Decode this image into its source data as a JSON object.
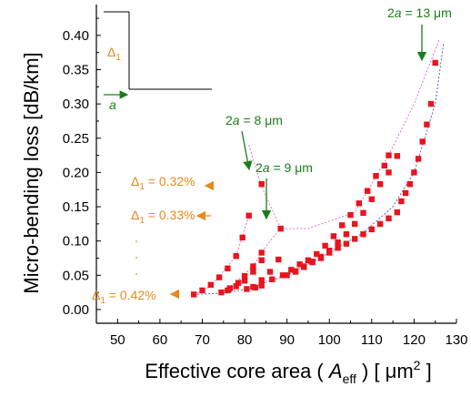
{
  "chart_data": {
    "type": "scatter",
    "title": "",
    "xlabel_prefix": "Effective core area ( ",
    "xlabel_var": "A",
    "xlabel_sub": "eff",
    "xlabel_suffix": " ) [ μm",
    "xlabel_sup": "2",
    "xlabel_end": " ]",
    "ylabel": "Micro-bending loss [dB/km]",
    "xlim": [
      45,
      130
    ],
    "ylim": [
      -0.02,
      0.445
    ],
    "xticks": [
      50,
      60,
      70,
      80,
      90,
      100,
      110,
      120,
      130
    ],
    "yticks": [
      0.0,
      0.05,
      0.1,
      0.15,
      0.2,
      0.25,
      0.3,
      0.35,
      0.4
    ],
    "ytick_labels": [
      "0.00",
      "0.05",
      "0.10",
      "0.15",
      "0.20",
      "0.25",
      "0.30",
      "0.35",
      "0.40"
    ],
    "grid": false,
    "marker_color": "#e8141e",
    "dash_color_pink": "#e85cc8",
    "dash_color_blue": "#4a4ab8",
    "series": [
      {
        "label_index": 0,
        "x": [
          68,
          70,
          72,
          74,
          76,
          78,
          79.5,
          81
        ],
        "y": [
          0.022,
          0.028,
          0.036,
          0.047,
          0.06,
          0.078,
          0.105,
          0.137
        ]
      },
      {
        "label_index": 1,
        "x": [
          74.5,
          76.5,
          78.5,
          80,
          82,
          84
        ],
        "y": [
          0.025,
          0.031,
          0.039,
          0.049,
          0.063,
          0.083
        ]
      },
      {
        "label_index": 2,
        "x": [
          76,
          78,
          80,
          82,
          84
        ],
        "y": [
          0.028,
          0.034,
          0.042,
          0.055,
          0.072
        ]
      },
      {
        "label_index": 3,
        "x": [
          80.5,
          82,
          84,
          86,
          88
        ],
        "y": [
          0.03,
          0.033,
          0.043,
          0.055,
          0.073
        ]
      },
      {
        "label_index": 4,
        "x": [
          82.5,
          84,
          86.5,
          89,
          91,
          93,
          95,
          97,
          99,
          101,
          103,
          105,
          107,
          109,
          111,
          113,
          114
        ],
        "y": [
          0.032,
          0.035,
          0.044,
          0.05,
          0.058,
          0.066,
          0.072,
          0.081,
          0.093,
          0.107,
          0.123,
          0.138,
          0.155,
          0.173,
          0.195,
          0.21,
          0.225
        ]
      },
      {
        "label_index": 5,
        "x": [
          90,
          92,
          94,
          96,
          98,
          100,
          102,
          104,
          106,
          108,
          110,
          112,
          114,
          116
        ],
        "y": [
          0.05,
          0.056,
          0.063,
          0.069,
          0.075,
          0.086,
          0.098,
          0.11,
          0.125,
          0.141,
          0.161,
          0.183,
          0.2,
          0.224
        ]
      },
      {
        "label_index": 6,
        "x": [
          84,
          88.5
        ],
        "y": [
          0.183,
          0.118
        ]
      },
      {
        "label_index": 7,
        "x": [
          92,
          94,
          96,
          98,
          100,
          102,
          104,
          106,
          108,
          110,
          112,
          114,
          116,
          117,
          118,
          119,
          120,
          121,
          122,
          123,
          124,
          125
        ],
        "y": [
          0.055,
          0.062,
          0.07,
          0.077,
          0.083,
          0.09,
          0.096,
          0.103,
          0.11,
          0.117,
          0.125,
          0.133,
          0.142,
          0.158,
          0.17,
          0.183,
          0.2,
          0.22,
          0.245,
          0.27,
          0.3,
          0.36
        ]
      }
    ],
    "annotations": [
      {
        "text": "Δ",
        "sub": "1",
        "rest": " = 0.32%",
        "color": "orange",
        "arrow_to": [
          83.5,
          0.183
        ],
        "pos": "left"
      },
      {
        "text": "Δ",
        "sub": "1",
        "rest": " = 0.33%",
        "color": "orange",
        "arrow_to": [
          80.5,
          0.137
        ],
        "pos": "left"
      },
      {
        "text": "Δ",
        "sub": "1",
        "rest": " = 0.42%",
        "color": "orange",
        "arrow_to": [
          67.5,
          0.022
        ],
        "pos": "left"
      },
      {
        "text": "2",
        "ital": "a",
        "rest": " = 8 μm",
        "color": "green",
        "arrow_to": [
          84,
          0.2
        ],
        "pos": "above"
      },
      {
        "text": "2",
        "ital": "a",
        "rest": " = 9 μm",
        "color": "green",
        "arrow_to": [
          88.5,
          0.125
        ],
        "pos": "above"
      },
      {
        "text": "2",
        "ital": "a",
        "rest": " = 13 μm",
        "color": "green",
        "arrow_to": [
          125,
          0.37
        ],
        "pos": "above"
      }
    ],
    "inset": {
      "delta_label": "Δ",
      "delta_sub": "1",
      "a_label": "a"
    }
  }
}
